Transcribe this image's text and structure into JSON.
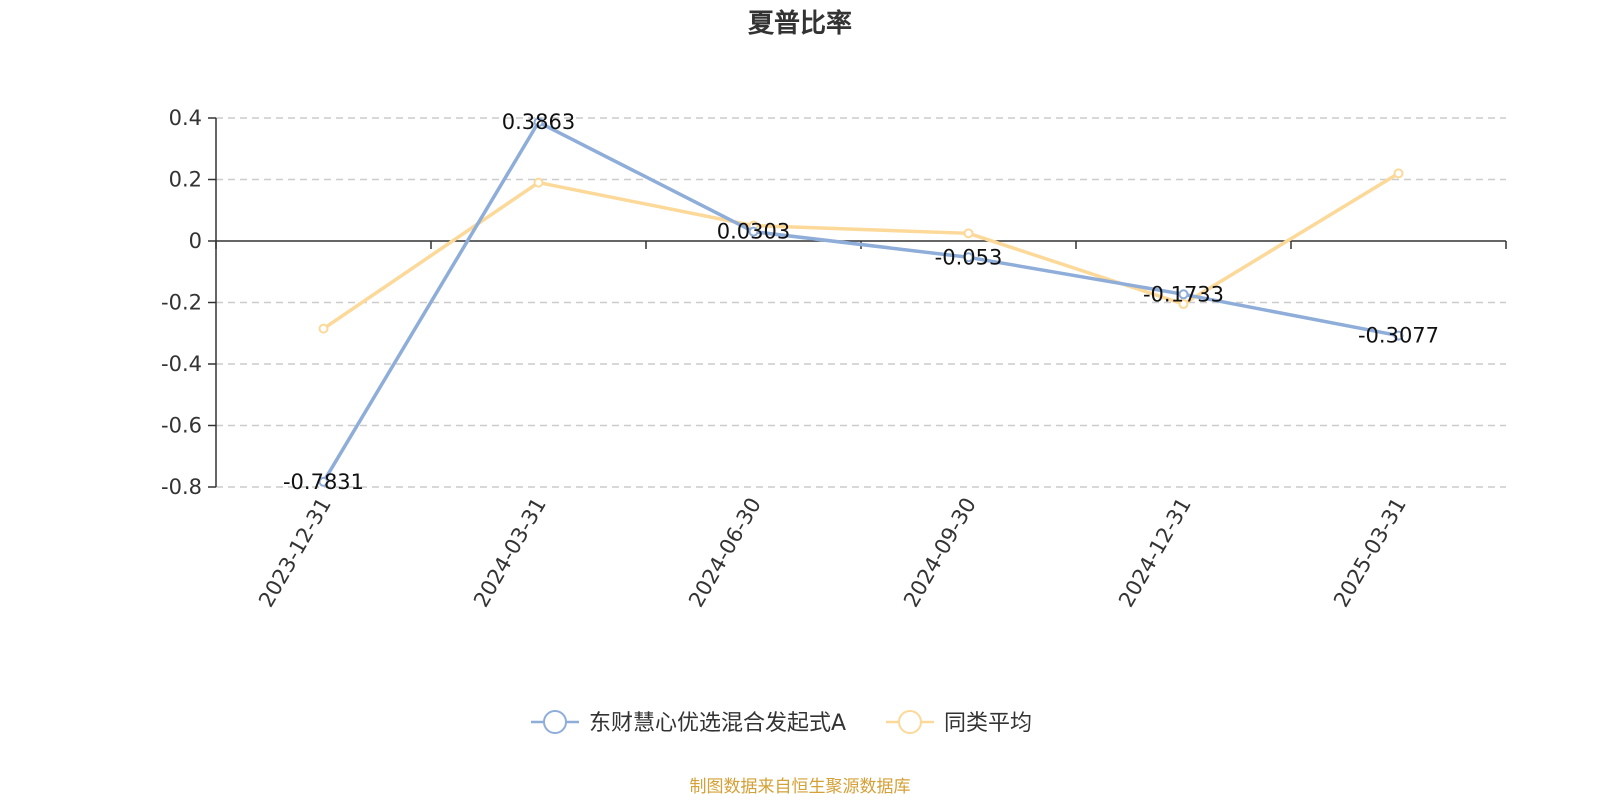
{
  "chart_data": {
    "type": "line",
    "title": "夏普比率",
    "categories": [
      "2023-12-31",
      "2024-03-31",
      "2024-06-30",
      "2024-09-30",
      "2024-12-31",
      "2025-03-31"
    ],
    "series": [
      {
        "name": "东财慧心优选混合发起式A",
        "color": "#8eadd9",
        "values": [
          -0.7831,
          0.3863,
          0.0303,
          -0.053,
          -0.1733,
          -0.3077
        ],
        "labels": [
          "-0.7831",
          "0.3863",
          "0.0303",
          "-0.053",
          "-0.1733",
          "-0.3077"
        ]
      },
      {
        "name": "同类平均",
        "color": "#fcd999",
        "values": [
          -0.285,
          0.19,
          0.05,
          0.025,
          -0.205,
          0.22
        ]
      }
    ],
    "yticks": [
      "0.4",
      "0.2",
      "0",
      "-0.2",
      "-0.4",
      "-0.6",
      "-0.8"
    ],
    "ylim": [
      -0.8,
      0.4
    ],
    "grid": true,
    "legend_position": "bottom"
  },
  "source": {
    "text": "制图数据来自恒生聚源数据库",
    "color": "#d4a037"
  }
}
